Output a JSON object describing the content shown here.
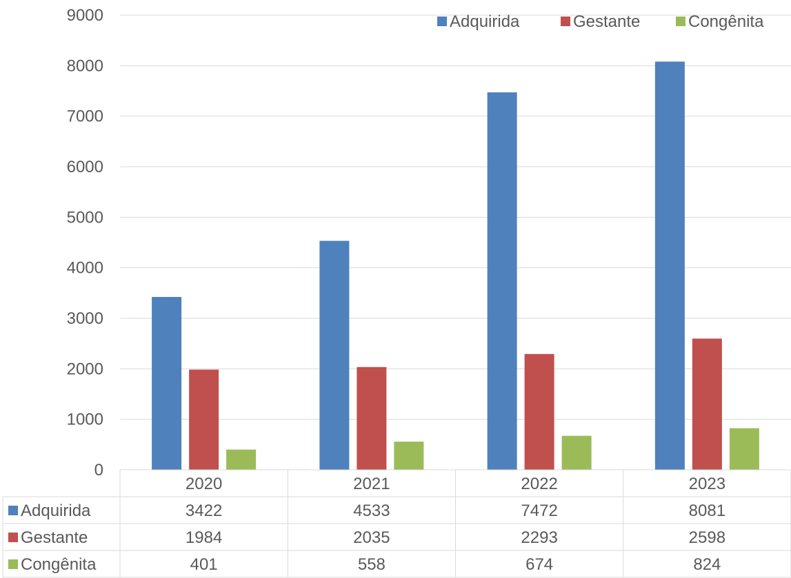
{
  "chart_data": {
    "type": "bar",
    "categories": [
      "2020",
      "2021",
      "2022",
      "2023"
    ],
    "series": [
      {
        "name": "Adquirida",
        "color": "#4F81BD",
        "values": [
          3422,
          4533,
          7472,
          8081
        ]
      },
      {
        "name": "Gestante",
        "color": "#C0504D",
        "values": [
          1984,
          2035,
          2293,
          2598
        ]
      },
      {
        "name": "Congênita",
        "color": "#9BBB59",
        "values": [
          401,
          558,
          674,
          824
        ]
      }
    ],
    "ylim": [
      0,
      9000
    ],
    "yticks": [
      0,
      1000,
      2000,
      3000,
      4000,
      5000,
      6000,
      7000,
      8000,
      9000
    ],
    "grid": true,
    "legend": "top-right",
    "data_table": true
  }
}
